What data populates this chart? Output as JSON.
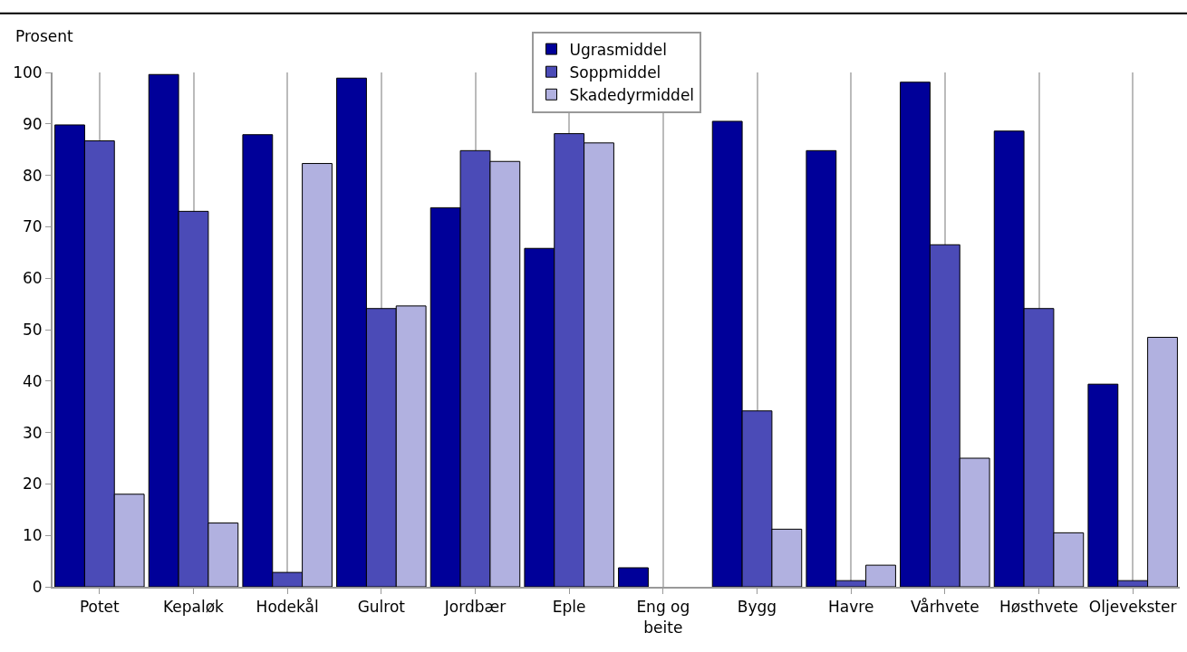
{
  "chart_data": {
    "type": "bar",
    "ylabel": "Prosent",
    "categories": [
      "Potet",
      "Kepaløk",
      "Hodekål",
      "Gulrot",
      "Jordbær",
      "Eple",
      "Eng og beite",
      "Bygg",
      "Havre",
      "Vårhvete",
      "Høsthvete",
      "Oljevekster"
    ],
    "series": [
      {
        "name": "Ugrasmiddel",
        "color": "#000099",
        "values": [
          89.8,
          99.6,
          87.9,
          98.9,
          73.7,
          65.8,
          3.7,
          90.5,
          84.8,
          98.1,
          88.6,
          39.4
        ]
      },
      {
        "name": "Soppmiddel",
        "color": "#4b4bb7",
        "values": [
          86.7,
          73.0,
          2.8,
          54.1,
          84.8,
          88.1,
          0,
          34.2,
          1.2,
          66.5,
          54.1,
          1.2
        ]
      },
      {
        "name": "Skadedyrmiddel",
        "color": "#b1b1e0",
        "values": [
          18.0,
          12.4,
          82.3,
          54.6,
          82.7,
          86.3,
          0,
          11.2,
          4.2,
          25.0,
          10.5,
          48.5
        ]
      }
    ],
    "ylim": [
      0,
      100
    ],
    "yticks": [
      0,
      10,
      20,
      30,
      40,
      50,
      60,
      70,
      80,
      90,
      100
    ],
    "grid": "x",
    "legend": "top"
  }
}
